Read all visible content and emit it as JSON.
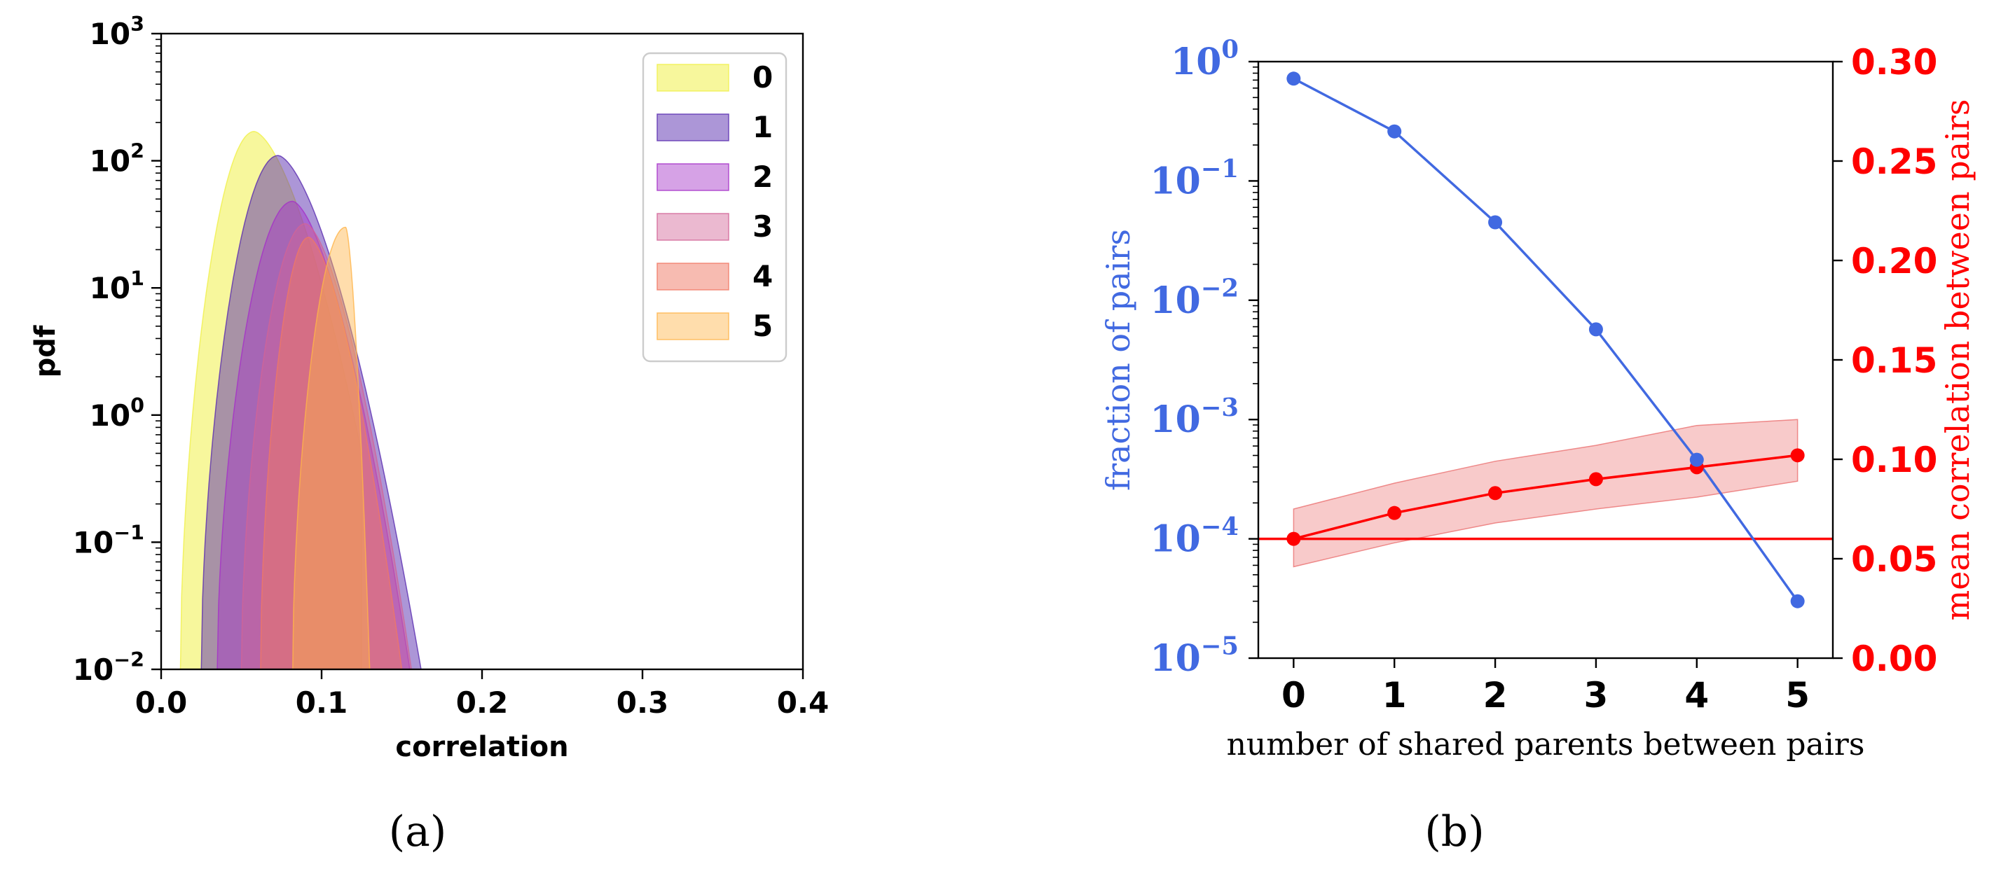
{
  "colors": {
    "fraction": "#4169e1",
    "correlation": "#ff0000",
    "band": "#f4a6a6",
    "group": [
      "#f0f04a",
      "#5a2db0",
      "#a530c8",
      "#d26496",
      "#f07864",
      "#ffb448"
    ]
  },
  "chart_data": [
    {
      "type": "area",
      "panel_label": "(a)",
      "xlabel": "correlation",
      "ylabel": "pdf",
      "xlim": [
        0.0,
        0.4
      ],
      "ylim": [
        0.01,
        1000
      ],
      "yscale": "log",
      "xticks": [
        "0.0",
        "0.1",
        "0.2",
        "0.3",
        "0.4"
      ],
      "yticks": [
        {
          "base": "10",
          "exp": "3"
        },
        {
          "base": "10",
          "exp": "2"
        },
        {
          "base": "10",
          "exp": "1"
        },
        {
          "base": "10",
          "exp": "0"
        },
        {
          "base": "10",
          "exp": "−1"
        },
        {
          "base": "10",
          "exp": "−2"
        }
      ],
      "legend_position": "top-right",
      "series": [
        {
          "name": "0",
          "peak_x": 0.058,
          "peak_y": 170,
          "left_x": 0.012,
          "right_x": 0.125,
          "right_floor": 0.5
        },
        {
          "name": "1",
          "peak_x": 0.073,
          "peak_y": 110,
          "left_x": 0.025,
          "right_x": 0.162,
          "right_floor": 0.01
        },
        {
          "name": "2",
          "peak_x": 0.082,
          "peak_y": 48,
          "left_x": 0.035,
          "right_x": 0.155,
          "right_floor": 0.01
        },
        {
          "name": "3",
          "peak_x": 0.09,
          "peak_y": 32,
          "left_x": 0.05,
          "right_x": 0.156,
          "right_floor": 0.01
        },
        {
          "name": "4",
          "peak_x": 0.092,
          "peak_y": 25,
          "left_x": 0.062,
          "right_x": 0.15,
          "right_floor": 0.01
        },
        {
          "name": "5",
          "peak_x": 0.115,
          "peak_y": 30,
          "left_x": 0.082,
          "right_x": 0.13,
          "right_floor": 0.01
        }
      ]
    },
    {
      "type": "line",
      "panel_label": "(b)",
      "xlabel": "number of shared parents between pairs",
      "ylabel_left": "fraction of pairs",
      "ylabel_right": "mean correlation between pairs",
      "x": [
        0,
        1,
        2,
        3,
        4,
        5
      ],
      "xlim": [
        -0.35,
        5.35
      ],
      "xticks": [
        "0",
        "1",
        "2",
        "3",
        "4",
        "5"
      ],
      "yticks_left": [
        {
          "base": "10",
          "exp": "0"
        },
        {
          "base": "10",
          "exp": "−1"
        },
        {
          "base": "10",
          "exp": "−2"
        },
        {
          "base": "10",
          "exp": "−3"
        },
        {
          "base": "10",
          "exp": "−4"
        },
        {
          "base": "10",
          "exp": "−5"
        }
      ],
      "yticks_right": [
        "0.30",
        "0.25",
        "0.20",
        "0.15",
        "0.10",
        "0.05",
        "0.00"
      ],
      "ylim_left": [
        1e-05,
        1
      ],
      "ylim_right": [
        0.0,
        0.3
      ],
      "series": [
        {
          "name": "fraction of pairs",
          "axis": "left",
          "values": [
            0.72,
            0.26,
            0.045,
            0.0057,
            0.00046,
            3e-05
          ]
        },
        {
          "name": "mean correlation",
          "axis": "right",
          "values": [
            0.06,
            0.073,
            0.083,
            0.09,
            0.096,
            0.102
          ],
          "band_low": [
            0.046,
            0.058,
            0.068,
            0.075,
            0.081,
            0.089
          ],
          "band_high": [
            0.075,
            0.088,
            0.099,
            0.107,
            0.117,
            0.12
          ]
        }
      ],
      "baseline_right": 0.06
    }
  ]
}
